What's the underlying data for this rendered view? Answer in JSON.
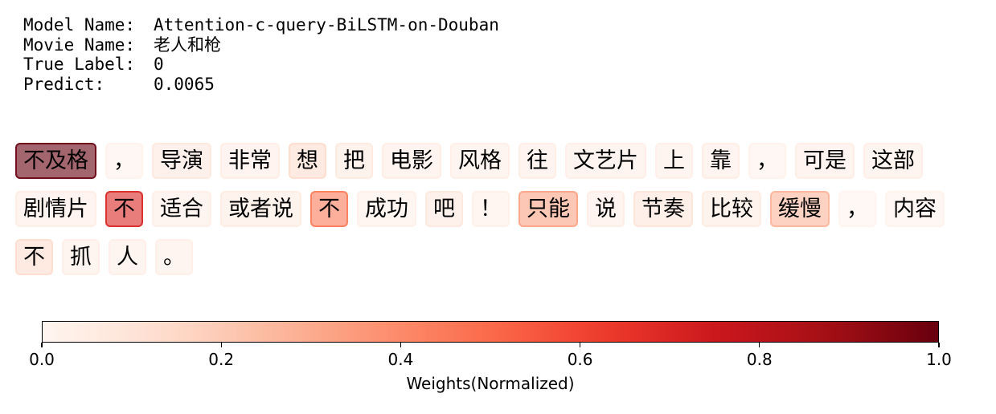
{
  "meta": [
    {
      "key": "Model Name:",
      "value": "Attention-c-query-BiLSTM-on-Douban"
    },
    {
      "key": "Movie Name:",
      "value": "老人和枪"
    },
    {
      "key": "True Label:",
      "value": "0"
    },
    {
      "key": "Predict:",
      "value": "0.0065"
    }
  ],
  "chart_data": {
    "type": "heatmap",
    "colormap": "Reds",
    "tokens": [
      {
        "text": "不及格",
        "weight": 1.0
      },
      {
        "text": "，",
        "weight": 0.02
      },
      {
        "text": "导演",
        "weight": 0.08
      },
      {
        "text": "非常",
        "weight": 0.05
      },
      {
        "text": "想",
        "weight": 0.14
      },
      {
        "text": "把",
        "weight": 0.07
      },
      {
        "text": "电影",
        "weight": 0.05
      },
      {
        "text": "风格",
        "weight": 0.04
      },
      {
        "text": "往",
        "weight": 0.05
      },
      {
        "text": "文艺片",
        "weight": 0.04
      },
      {
        "text": "上",
        "weight": 0.04
      },
      {
        "text": "靠",
        "weight": 0.05
      },
      {
        "text": "，",
        "weight": 0.02
      },
      {
        "text": "可是",
        "weight": 0.05
      },
      {
        "text": "这部",
        "weight": 0.04
      },
      {
        "text": "剧情片",
        "weight": 0.05
      },
      {
        "text": "不",
        "weight": 0.7
      },
      {
        "text": "适合",
        "weight": 0.04
      },
      {
        "text": "或者说",
        "weight": 0.06
      },
      {
        "text": "不",
        "weight": 0.45
      },
      {
        "text": "成功",
        "weight": 0.03
      },
      {
        "text": "吧",
        "weight": 0.08
      },
      {
        "text": "！",
        "weight": 0.03
      },
      {
        "text": "只能",
        "weight": 0.33
      },
      {
        "text": "说",
        "weight": 0.05
      },
      {
        "text": "节奏",
        "weight": 0.1
      },
      {
        "text": "比较",
        "weight": 0.06
      },
      {
        "text": "缓慢",
        "weight": 0.27
      },
      {
        "text": "，",
        "weight": 0.01
      },
      {
        "text": "内容",
        "weight": 0.02
      },
      {
        "text": "不",
        "weight": 0.14
      },
      {
        "text": "抓",
        "weight": 0.04
      },
      {
        "text": "人",
        "weight": 0.04
      },
      {
        "text": "。",
        "weight": 0.04
      }
    ],
    "colorbar": {
      "range": [
        0.0,
        1.0
      ],
      "ticks": [
        "0.0",
        "0.2",
        "0.4",
        "0.6",
        "0.8",
        "1.0"
      ],
      "label": "Weights(Normalized)"
    }
  }
}
